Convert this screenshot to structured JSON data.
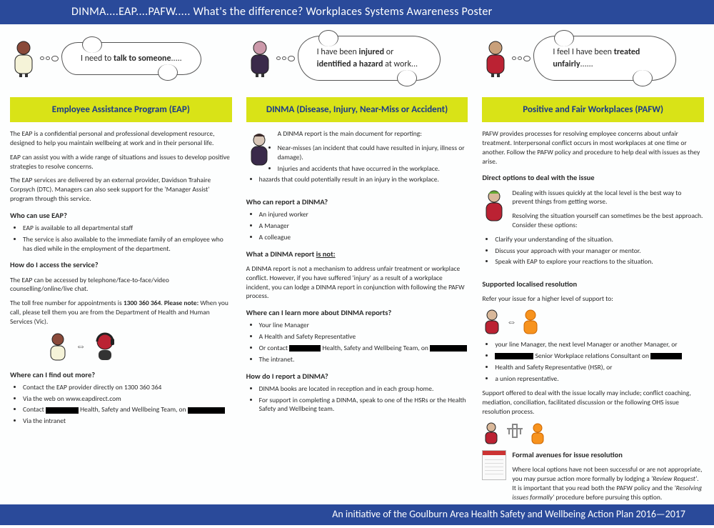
{
  "banner": {
    "top": "DINMA....EAP....PAFW..... What's the difference?  Workplaces Systems Awareness Poster",
    "bottom": "An initiative of the Goulburn Area Health Safety and Wellbeing Action Plan 2016—2017"
  },
  "cols": [
    {
      "thought_html": "I need to <b>talk to someone</b>.....",
      "title": "Employee Assistance Program (EAP)",
      "person": {
        "head": "#8a4a3a",
        "body": "#f5f3d8"
      },
      "body_html": "<p>The EAP is a confidential personal and professional development resource, designed to help you maintain wellbeing at work and in their personal life.</p><p>EAP can assist you with a wide range of situations and issues to develop positive strategies to resolve concerns.</p><p>The EAP services are delivered by an external provider, Davidson Trahaire Corpsych (DTC). Managers can also seek support for the 'Manager Assist' program through this service.</p><h4>Who can use EAP?</h4><ul><li>EAP is available to all departmental staff</li><li>The service is also available to the immediate family of an employee who has died while in the employment of the department.</li></ul><h4>How do I access the service?</h4><p>The EAP can be accessed by telephone/face-to-face/video counselling/online/live chat.</p><p>The toll free number for appointments is <b>1300 360 364</b>. <b>Please note:</b> When you call, please tell them you are from the Department of Health and Human Services (Vic).</p><div class='inline-icons'><svg width='34' height='44' viewBox='0 0 34 44'><circle cx='17' cy='11' r='8' fill='#8a4a3a' stroke='#222'/><rect x='7' y='20' width='20' height='20' rx='7' fill='#f5f3d8' stroke='#222'/></svg><span class='arrow'>⇔</span><svg width='38' height='44' viewBox='0 0 38 44'><circle cx='19' cy='14' r='11' fill='#b23' stroke='#222'/><path d='M8 14a11 11 0 0 1 22 0' fill='none' stroke='#222' stroke-width='3'/><rect x='10' y='26' width='18' height='14' rx='6' fill='#333'/><rect x='27' y='10' width='5' height='9' rx='2' fill='#222'/></svg></div><h4>Where can I find out more?</h4><ul><li>Contact the EAP provider directly on 1300 360 364</li><li>Via the web on www.eapdirect.com</li><li>Contact <span class='redact' style='width:46px'></span> Health, Safety and Wellbeing Team, on <span class='redact' style='width:52px'></span></li><li>Via the intranet</li></ul>"
    },
    {
      "thought_html": "I have been <b>injured</b> or <b>identified a hazard</b> at work...",
      "title": "DINMA (Disease, Injury, Near-Miss or Accident)",
      "person": {
        "head": "#c9a",
        "body": "#3a2a4a"
      },
      "body_html": "<svg class='side-person' width='36' height='52' viewBox='0 0 36 52'><circle cx='18' cy='11' r='8' fill='#d9c7b8' stroke='#222'/><path d='M10 6q8-8 16 0' fill='#3a2a2a'/><rect x='7' y='20' width='22' height='26' rx='8' fill='#3a2a4a' stroke='#222'/></svg><p>A DINMA report is the main document for reporting:</p><ul><li>Near-misses (an incident that could have resulted in injury, illness or damage).</li><li>Injuries and accidents that have occurred in the workplace.</li><li>hazards that could potentially result in an injury in the workplace.</li></ul><div class='clear'></div><h4>Who can report a DINMA?</h4><ul><li>An injured worker</li><li>A Manager</li><li>A colleague</li></ul><h4>What a DINMA report <u>is not:</u></h4><p>A DINMA report is not a mechanism to address unfair treatment or workplace conflict. However, if you have suffered 'injury' as a result of a workplace incident, you can lodge a DINMA report in conjunction with following the PAFW process.</p><h4>Where can I learn more about DINMA reports?</h4><ul><li>Your line Manager</li><li>A Health and Safety Representative</li><li>Or contact <span class='redact' style='width:44px'></span> Health, Safety and Wellbeing Team, on <span class='redact' style='width:52px'></span></li><li>The intranet.</li></ul><h4>How do I report a DINMA?</h4><ul><li>DINMA books are located in reception and in each group home.</li><li>For support in completing a DINMA, speak to one of the HSRs or the Health Safety and Wellbeing team.</li></ul>"
    },
    {
      "thought_html": "I feel I have been <b>treated unfairly</b>......",
      "title": "Positive and Fair Workplaces (PAFW)",
      "person": {
        "head": "#c9a07a",
        "body": "#b23"
      },
      "body_html": "<p>PAFW provides processes for resolving employee concerns about unfair treatment. Interpersonal conflict occurs in most workplaces at one time or another. Follow the PAFW policy and procedure to help deal with issues as they arise.</p><h4>Direct options to deal with the issue</h4><svg class='side-person' width='34' height='50' viewBox='0 0 34 50'><circle cx='17' cy='10' r='8' fill='#d9b89a' stroke='#222'/><path d='M9 6q8-7 16 0' fill='#6a3'/><rect x='6' y='19' width='22' height='25' rx='8' fill='#b23' stroke='#222'/></svg><p>Dealing with issues quickly at the local level is the best way to prevent things from getting worse.</p><p>Resolving the situation yourself can sometimes be the best approach. Consider these options:</p><ul><li>Clarify your understanding of the situation.</li><li>Discuss your approach with your manager or mentor.</li><li>Speak with EAP to explore your reactions to the situation.</li></ul><div class='clear'></div><h4>Supported localised resolution</h4><p>Refer your issue for a higher level of support to:</p><div class='inline-icons2'><svg width='28' height='38' viewBox='0 0 28 38'><circle cx='14' cy='9' r='7' fill='#d9b89a' stroke='#222'/><rect x='5' y='17' width='18' height='18' rx='6' fill='#b23' stroke='#222'/></svg><span class='arrow'>⇔</span><svg width='28' height='38' viewBox='0 0 28 38'><circle cx='14' cy='9' r='7' fill='#f7931e' stroke='#c60'/><rect x='5' y='17' width='18' height='18' rx='6' fill='#f7931e' stroke='#c60'/></svg></div><ul><li>your line Manager, the next level Manager or another Manager, or</li><li><span class='redact' style='width:54px'></span> Senior Workplace relations Consultant on <span class='redact' style='width:44px'></span></li><li>Health and Safety Representative (HSR), or</li><li>a union representative.</li></ul><p>Support offered to deal with the issue locally may include; conflict coaching, mediation, conciliation, facilitated discussion or the following OHS issue resolution process.</p><div class='inline-icons2'><svg width='26' height='34' viewBox='0 0 26 34'><circle cx='13' cy='8' r='6' fill='#d9b89a' stroke='#222'/><rect x='5' y='15' width='16' height='16' rx='5' fill='#b23' stroke='#222'/></svg><svg width='28' height='30' viewBox='0 0 28 30'><rect x='11' y='2' width='6' height='18' fill='none' stroke='#888' stroke-width='2'/><path d='M3 8h22M6 8v8M22 8v8' stroke='#888' stroke-width='2' fill='none'/></svg><svg width='24' height='32' viewBox='0 0 24 32'><circle cx='12' cy='8' r='6' fill='#f7931e' stroke='#c60'/><rect x='4' y='15' width='16' height='15' rx='5' fill='#f7931e' stroke='#c60'/></svg></div><div style='display:flex;gap:8px;align-items:flex-start'><div class='formicon'></div><div style='flex:1'><h4 style='margin-top:0'>Formal avenues for issue resolution</h4><p>Where local options have not been successful or are not appropriate, you may pursue action more formally by lodging a <i>'Review Request'</i>. It is important that you read both the PAFW policy and the <i>'Resolving issues formally'</i> procedure before pursuing this option.</p></div></div>"
    }
  ]
}
